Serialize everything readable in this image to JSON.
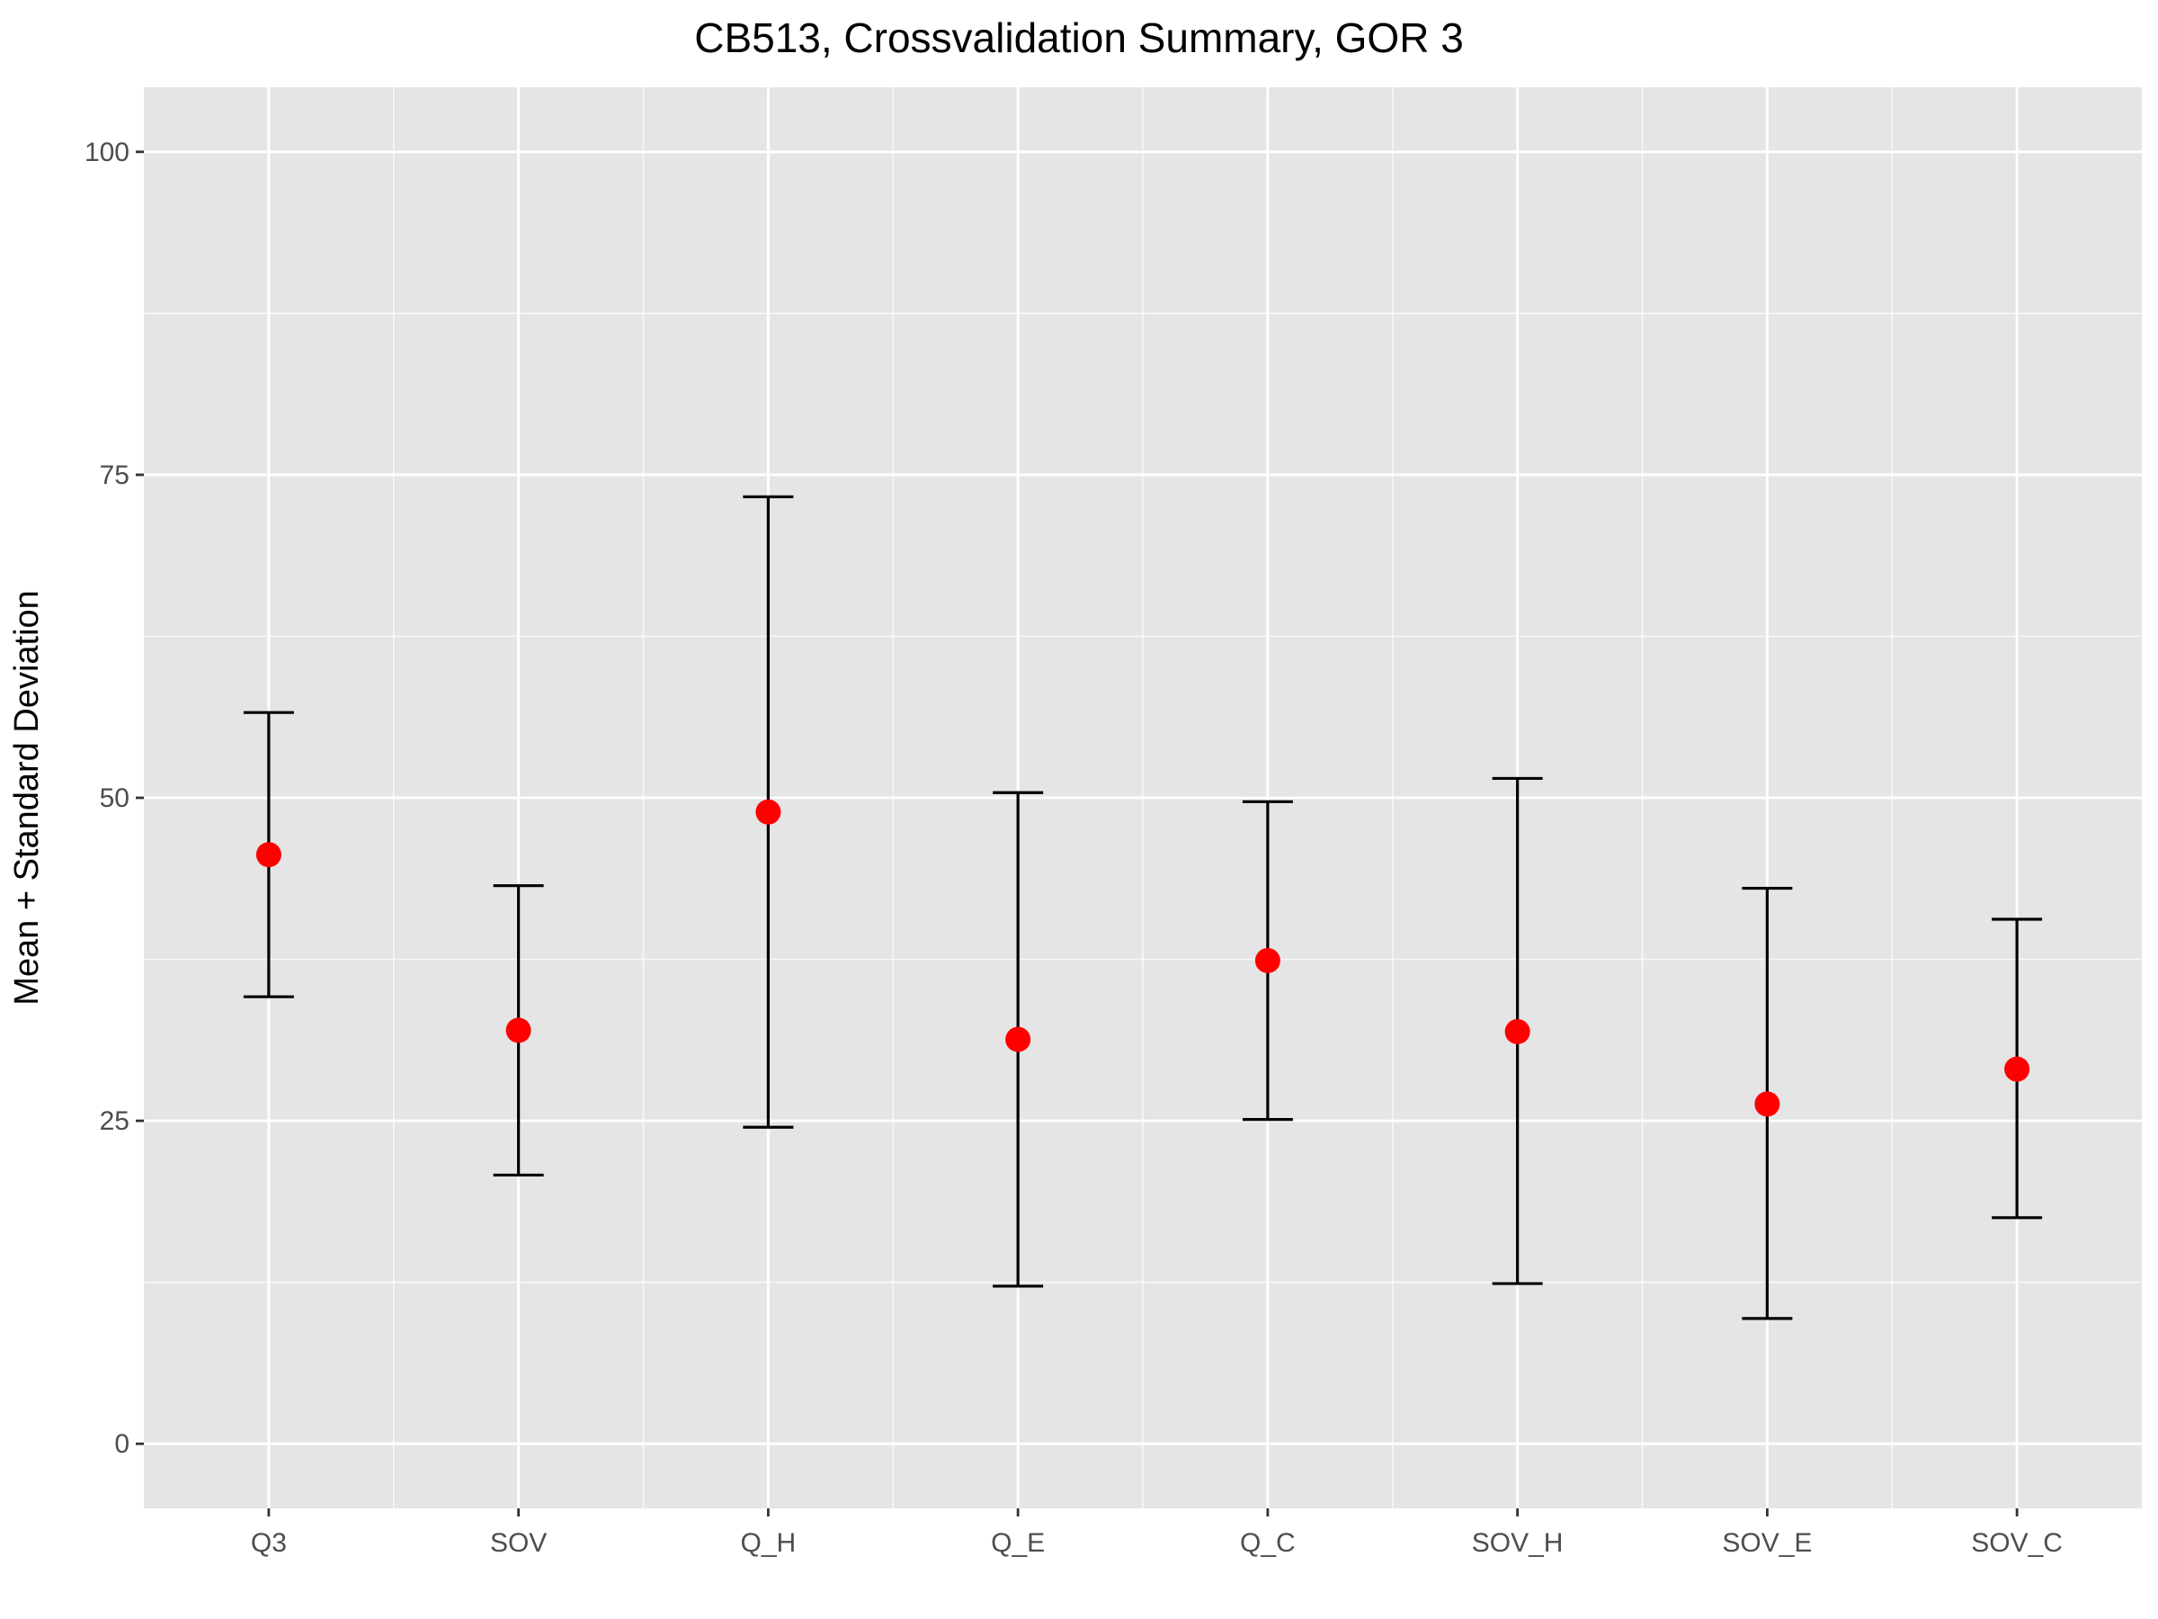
{
  "chart_data": {
    "type": "scatter",
    "title": "CB513, Crossvalidation Summary, GOR 3",
    "xlabel": "",
    "ylabel": "Mean + Standard Deviation",
    "categories": [
      "Q3",
      "SOV",
      "Q_H",
      "Q_E",
      "Q_C",
      "SOV_H",
      "SOV_E",
      "SOV_C"
    ],
    "series": [
      {
        "mean": [
          45.6,
          32.0,
          48.9,
          31.3,
          37.4,
          31.9,
          26.3,
          29.0
        ],
        "sd_low": [
          34.6,
          20.8,
          24.5,
          12.2,
          25.1,
          12.4,
          9.7,
          17.5
        ],
        "sd_high": [
          56.6,
          43.2,
          73.3,
          50.4,
          49.7,
          51.5,
          43.0,
          40.6
        ]
      }
    ],
    "ylim": [
      -5,
      105
    ],
    "yticks": [
      0,
      25,
      50,
      75,
      100
    ],
    "grid": true,
    "colors": {
      "panel_background": "#e5e5e5",
      "grid_major": "#ffffff",
      "point": "#ff0000",
      "error_bar": "#000000"
    }
  }
}
